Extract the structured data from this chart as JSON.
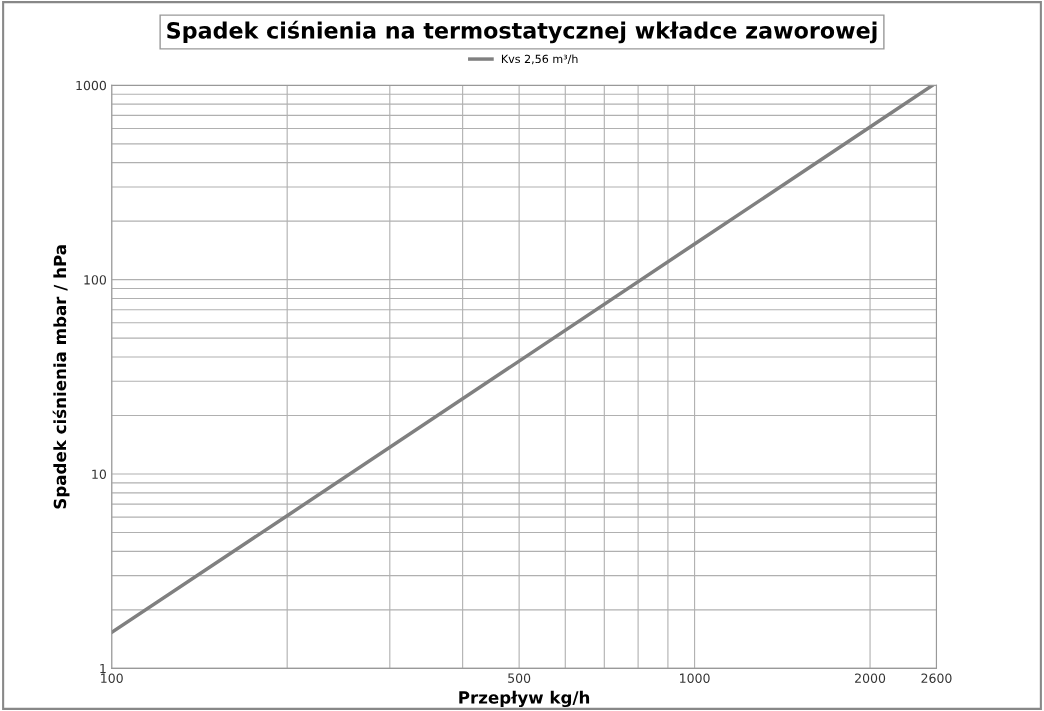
{
  "chart_data": {
    "type": "line",
    "title": "Spadek ciśnienia na termostatycznej wkładce zaworowej",
    "xlabel": "Przepływ kg/h",
    "ylabel": "Spadek ciśnienia mbar / hPa",
    "x": [
      100,
      200,
      500,
      1000,
      2000,
      2560
    ],
    "series": [
      {
        "name": "Kvs 2,56 m³/h",
        "color": "#808080",
        "values": [
          1.53,
          6.1,
          38.1,
          152.6,
          610,
          1000
        ]
      }
    ],
    "log": "xy",
    "xlim": [
      100,
      2600
    ],
    "ylim": [
      1,
      1000
    ],
    "xticks": [
      100,
      {
        "value": 200,
        "label": null
      },
      {
        "value": 300,
        "label": null
      },
      {
        "value": 400,
        "label": null
      },
      500,
      {
        "value": 600,
        "label": null
      },
      {
        "value": 700,
        "label": null
      },
      {
        "value": 800,
        "label": null
      },
      {
        "value": 900,
        "label": null
      },
      1000,
      2000,
      2600
    ],
    "yticks": [
      1,
      {
        "value": 2,
        "label": null
      },
      {
        "value": 3,
        "label": null
      },
      {
        "value": 4,
        "label": null
      },
      {
        "value": 5,
        "label": null
      },
      {
        "value": 6,
        "label": null
      },
      {
        "value": 7,
        "label": null
      },
      {
        "value": 8,
        "label": null
      },
      {
        "value": 9,
        "label": null
      },
      10,
      {
        "value": 20,
        "label": null
      },
      {
        "value": 30,
        "label": null
      },
      {
        "value": 40,
        "label": null
      },
      {
        "value": 50,
        "label": null
      },
      {
        "value": 60,
        "label": null
      },
      {
        "value": 70,
        "label": null
      },
      {
        "value": 80,
        "label": null
      },
      {
        "value": 90,
        "label": null
      },
      100,
      {
        "value": 200,
        "label": null
      },
      {
        "value": 300,
        "label": null
      },
      {
        "value": 400,
        "label": null
      },
      {
        "value": 500,
        "label": null
      },
      {
        "value": 600,
        "label": null
      },
      {
        "value": 700,
        "label": null
      },
      {
        "value": 800,
        "label": null
      },
      {
        "value": 900,
        "label": null
      },
      1000
    ],
    "grid": true,
    "legend": "top",
    "marker": "none",
    "line_style": "solid"
  }
}
